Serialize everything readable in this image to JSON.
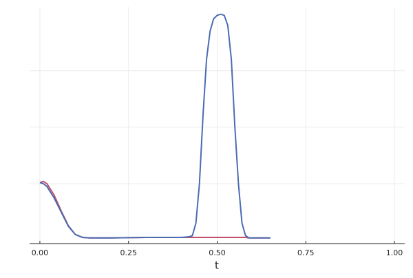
{
  "chart_data": {
    "type": "line",
    "x_label": "t",
    "x": [
      0,
      0.01,
      0.02,
      0.04,
      0.06,
      0.08,
      0.1,
      0.12,
      0.14,
      0.2,
      0.3,
      0.4,
      0.42,
      0.43,
      0.44,
      0.45,
      0.46,
      0.47,
      0.48,
      0.49,
      0.5,
      0.51,
      0.52,
      0.53,
      0.54,
      0.55,
      0.56,
      0.57,
      0.58,
      0.59,
      0.65
    ],
    "series": [
      {
        "color": "#4a6cb3",
        "values": [
          1.02,
          1.0,
          0.95,
          0.75,
          0.5,
          0.25,
          0.1,
          0.05,
          0.04,
          0.04,
          0.05,
          0.05,
          0.06,
          0.08,
          0.3,
          1.0,
          2.2,
          3.2,
          3.7,
          3.92,
          3.98,
          4.0,
          3.98,
          3.8,
          3.2,
          2.0,
          1.0,
          0.3,
          0.08,
          0.04,
          0.04
        ]
      },
      {
        "color": "#c0506a",
        "values": [
          1.02,
          1.04,
          1.0,
          0.8,
          0.52,
          0.26,
          0.1,
          0.05,
          0.04,
          0.04,
          0.05,
          0.05,
          0.05,
          0.05,
          0.05,
          0.05,
          0.05,
          0.05,
          0.05,
          0.05,
          0.05,
          0.05,
          0.05,
          0.05,
          0.05,
          0.05,
          0.05,
          0.05,
          0.05,
          0.04,
          0.04
        ]
      }
    ],
    "xlim": [
      -0.029,
      1.029
    ],
    "xticks": [
      {
        "value": 0,
        "label": "0.00"
      },
      {
        "value": 0.25,
        "label": "0.25"
      },
      {
        "value": 0.5,
        "label": "0.50"
      },
      {
        "value": 0.75,
        "label": "0.75"
      },
      {
        "value": 1,
        "label": "1.00"
      }
    ],
    "ylim": [
      -0.06,
      4.13
    ],
    "yticks": [
      1,
      2,
      3
    ],
    "grid": true
  }
}
